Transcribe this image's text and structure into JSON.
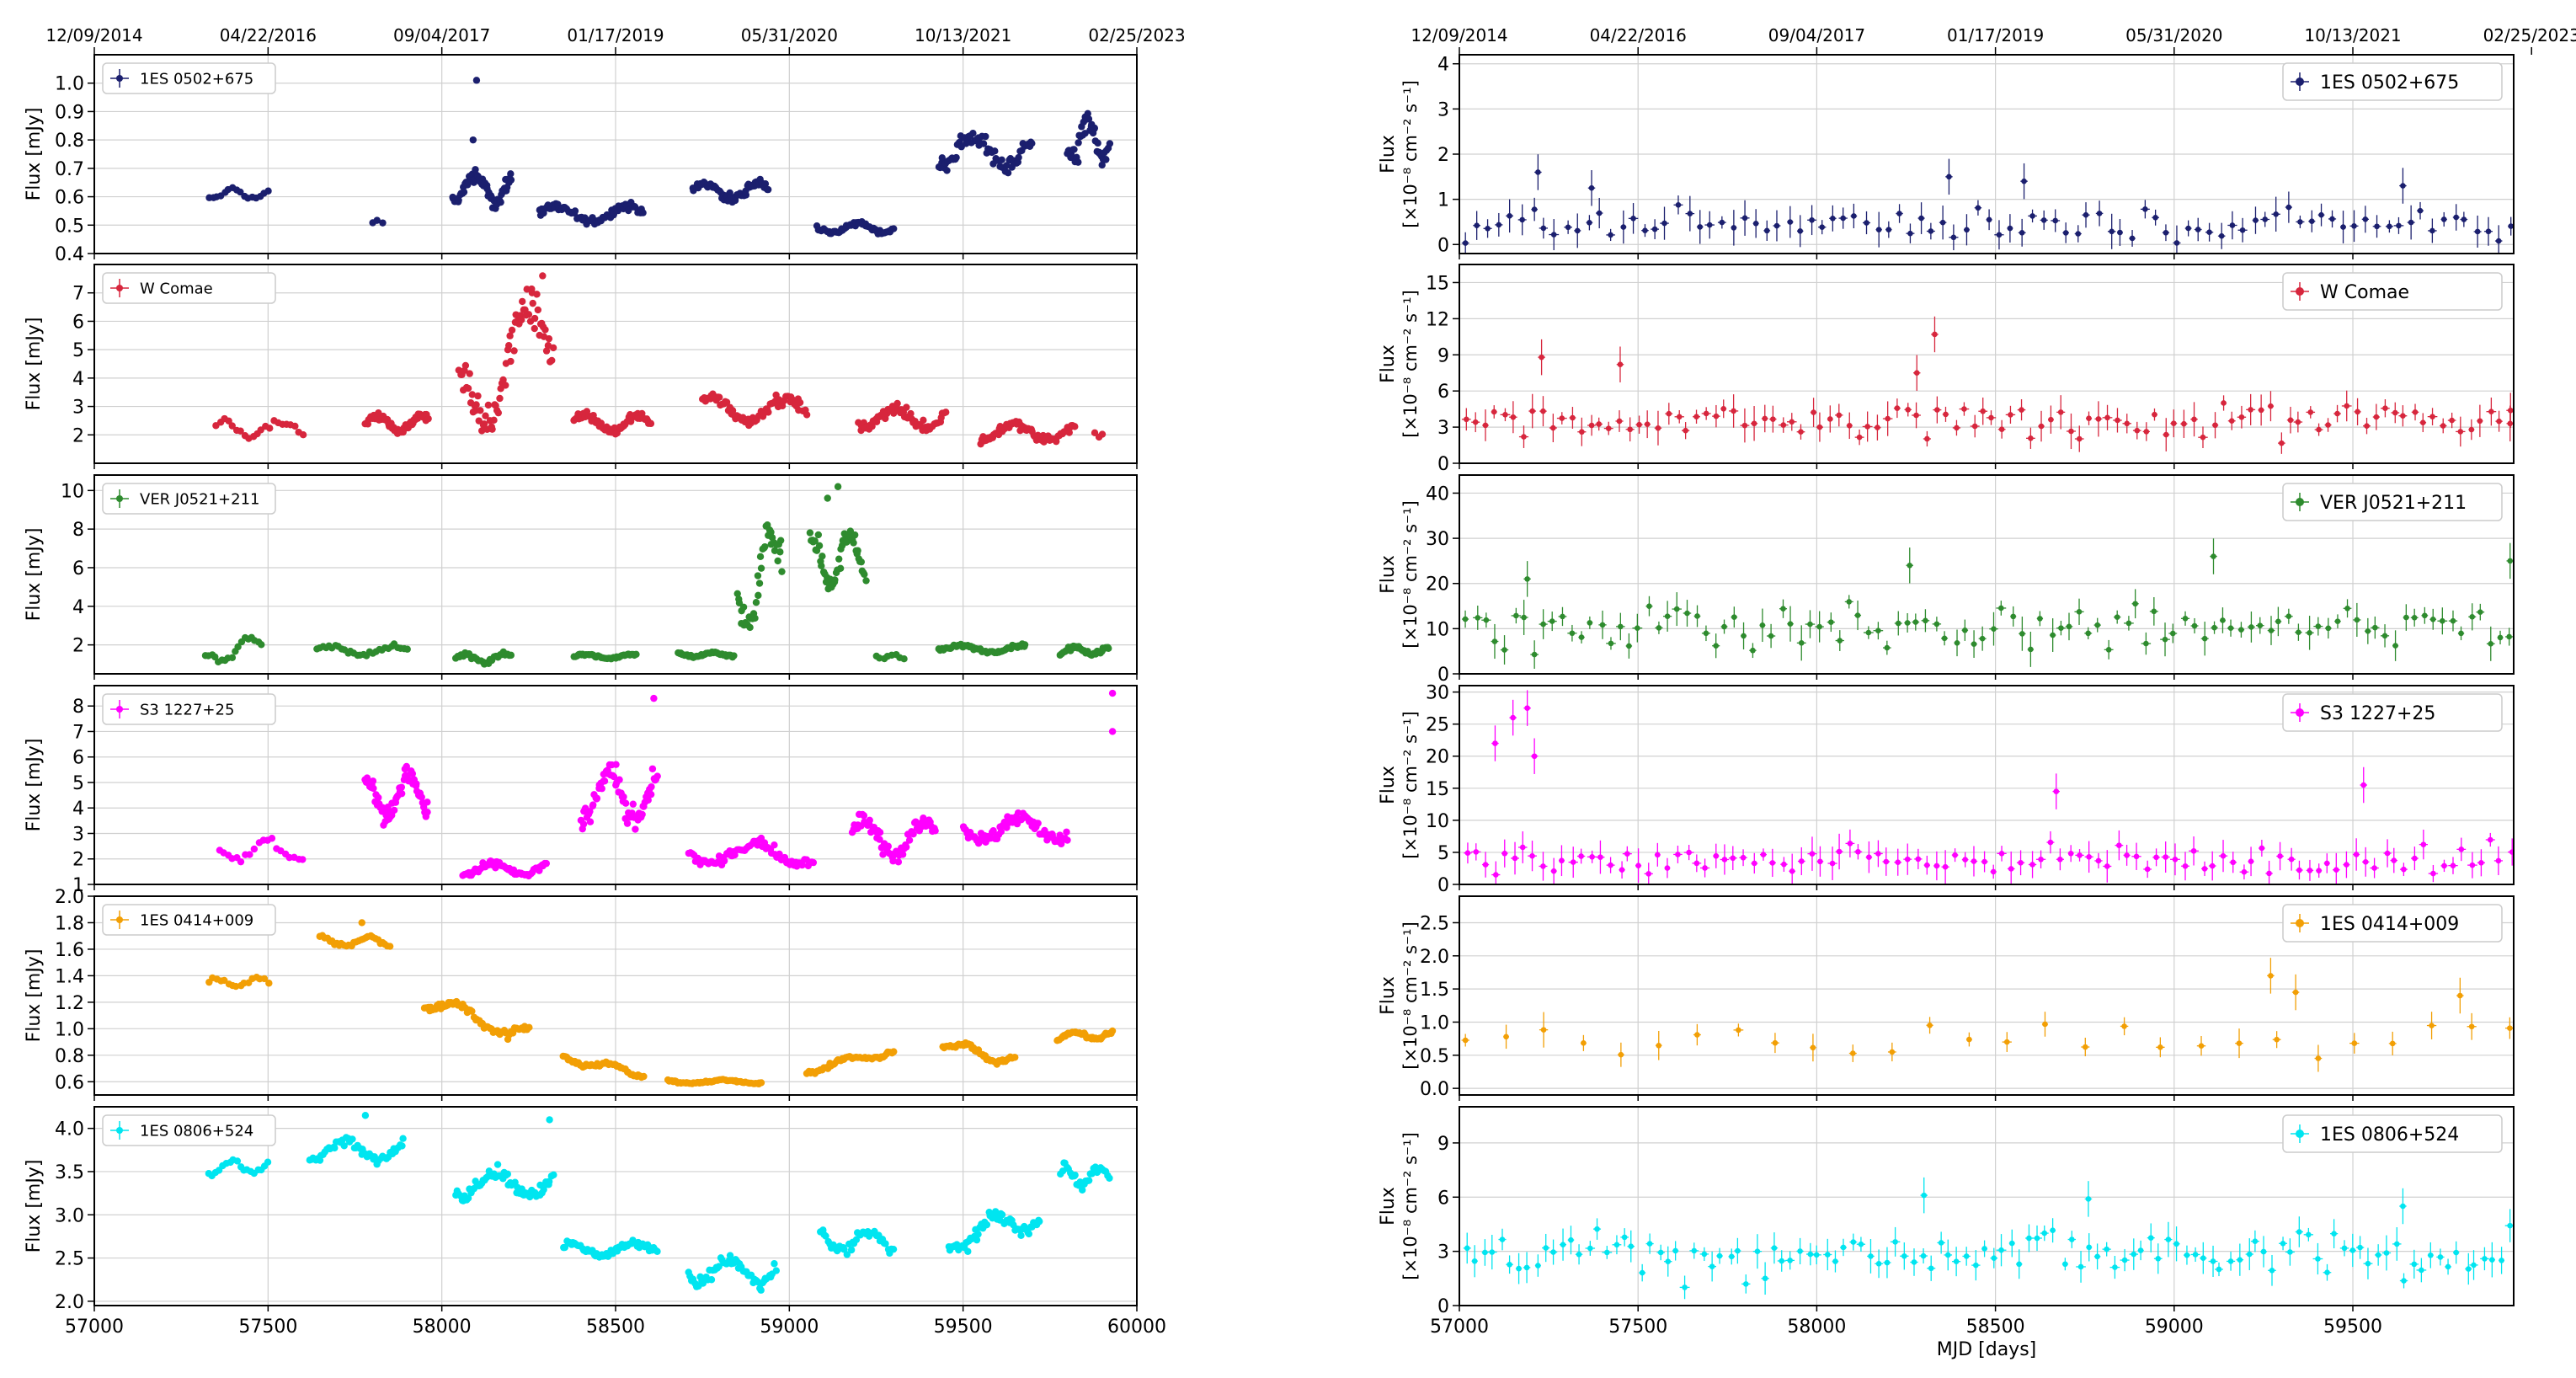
{
  "figure": {
    "top_dates": [
      "12/09/2014",
      "04/22/2016",
      "09/04/2017",
      "01/17/2019",
      "05/31/2020",
      "10/13/2021",
      "02/25/2023"
    ],
    "top_date_mjd": [
      57000,
      57500,
      58000,
      58500,
      59000,
      59500,
      60000
    ],
    "x_ticks": [
      57000,
      57500,
      58000,
      58500,
      59000,
      59500,
      60000
    ],
    "x_tick_labels": [
      "57000",
      "57500",
      "58000",
      "58500",
      "59000",
      "59500",
      "60000"
    ],
    "left_xlim": [
      57000,
      60000
    ],
    "right_xlim": [
      57000,
      59950
    ],
    "right_xlabel": "MJD [days]",
    "left_ylabel": "Flux [mJy]",
    "right_ylabel_line1": "Flux",
    "right_ylabel_line2": "[×10⁻⁸ cm⁻² s⁻¹]",
    "grid": true
  },
  "chart_data": [
    {
      "type": "scatter",
      "panel": "left-1",
      "source": "1ES 0502+675",
      "color": "#1b1f6e",
      "ylabel": "Flux [mJy]",
      "ylim": [
        0.4,
        1.1
      ],
      "yticks": [
        0.4,
        0.5,
        0.6,
        0.7,
        0.8,
        0.9,
        1.0
      ],
      "ytick_labels": [
        "0.4",
        "0.5",
        "0.6",
        "0.7",
        "0.8",
        "0.9",
        "1.0"
      ],
      "legend": "top-left",
      "segments": [
        {
          "x0": 57330,
          "x1": 57500,
          "base": 0.61,
          "amp": 0.03,
          "n": 16
        },
        {
          "x0": 57800,
          "x1": 57830,
          "base": 0.51,
          "amp": 0.01,
          "n": 3
        },
        {
          "x0": 58030,
          "x1": 58200,
          "base": 0.63,
          "amp": 0.08,
          "n": 60
        },
        {
          "x0": 58280,
          "x1": 58580,
          "base": 0.54,
          "amp": 0.05,
          "n": 70
        },
        {
          "x0": 58720,
          "x1": 58940,
          "base": 0.62,
          "amp": 0.05,
          "n": 60
        },
        {
          "x0": 59080,
          "x1": 59300,
          "base": 0.49,
          "amp": 0.03,
          "n": 55
        },
        {
          "x0": 59430,
          "x1": 59700,
          "base": 0.76,
          "amp": 0.1,
          "n": 70
        },
        {
          "x0": 59800,
          "x1": 59920,
          "base": 0.8,
          "amp": 0.12,
          "n": 45
        }
      ],
      "flares": [
        {
          "x": 58100,
          "y": 1.01
        },
        {
          "x": 58090,
          "y": 0.8
        }
      ]
    },
    {
      "type": "scatter",
      "panel": "left-2",
      "source": "W Comae",
      "color": "#d7263d",
      "ylabel": "Flux [mJy]",
      "ylim": [
        1,
        8
      ],
      "yticks": [
        2,
        3,
        4,
        5,
        6,
        7
      ],
      "ytick_labels": [
        "2",
        "3",
        "4",
        "5",
        "6",
        "7"
      ],
      "legend": "top-left",
      "segments": [
        {
          "x0": 57350,
          "x1": 57600,
          "base": 2.2,
          "amp": 0.5,
          "n": 22
        },
        {
          "x0": 57780,
          "x1": 57960,
          "base": 2.4,
          "amp": 0.5,
          "n": 55
        },
        {
          "x0": 58050,
          "x1": 58320,
          "base": 4.5,
          "amp": 2.5,
          "n": 75,
          "trend": 4.0
        },
        {
          "x0": 58380,
          "x1": 58600,
          "base": 2.4,
          "amp": 0.5,
          "n": 60
        },
        {
          "x0": 58750,
          "x1": 59050,
          "base": 2.9,
          "amp": 0.7,
          "n": 70
        },
        {
          "x0": 59200,
          "x1": 59450,
          "base": 2.6,
          "amp": 0.6,
          "n": 60
        },
        {
          "x0": 59550,
          "x1": 59820,
          "base": 2.1,
          "amp": 0.5,
          "n": 70
        },
        {
          "x0": 59880,
          "x1": 59900,
          "base": 2.0,
          "amp": 0.2,
          "n": 3
        }
      ],
      "flares": [
        {
          "x": 58290,
          "y": 7.6
        },
        {
          "x": 58260,
          "y": 7.0
        }
      ]
    },
    {
      "type": "scatter",
      "panel": "left-3",
      "source": "VER J0521+211",
      "color": "#2e8b2e",
      "ylabel": "Flux [mJy]",
      "ylim": [
        0.5,
        10.8
      ],
      "yticks": [
        2,
        4,
        6,
        8,
        10
      ],
      "ytick_labels": [
        "2",
        "4",
        "6",
        "8",
        "10"
      ],
      "legend": "top-left",
      "segments": [
        {
          "x0": 57320,
          "x1": 57480,
          "base": 1.7,
          "amp": 0.6,
          "n": 18,
          "trend": 1.2
        },
        {
          "x0": 57640,
          "x1": 57900,
          "base": 1.7,
          "amp": 0.4,
          "n": 30
        },
        {
          "x0": 58040,
          "x1": 58200,
          "base": 1.3,
          "amp": 0.4,
          "n": 30
        },
        {
          "x0": 58380,
          "x1": 58560,
          "base": 1.4,
          "amp": 0.2,
          "n": 40
        },
        {
          "x0": 58680,
          "x1": 58840,
          "base": 1.5,
          "amp": 0.2,
          "n": 40
        },
        {
          "x0": 58850,
          "x1": 58980,
          "base": 5.5,
          "amp": 2.5,
          "n": 40,
          "trend": 5.0
        },
        {
          "x0": 59060,
          "x1": 59220,
          "base": 6.5,
          "amp": 2.2,
          "n": 50
        },
        {
          "x0": 59250,
          "x1": 59330,
          "base": 1.4,
          "amp": 0.2,
          "n": 8
        },
        {
          "x0": 59430,
          "x1": 59680,
          "base": 1.8,
          "amp": 0.3,
          "n": 55
        },
        {
          "x0": 59780,
          "x1": 59920,
          "base": 1.7,
          "amp": 0.3,
          "n": 35
        }
      ],
      "flares": [
        {
          "x": 59140,
          "y": 10.2
        },
        {
          "x": 59110,
          "y": 9.6
        }
      ]
    },
    {
      "type": "scatter",
      "panel": "left-4",
      "source": "S3 1227+25",
      "color": "#ff00ff",
      "ylabel": "Flux [mJy]",
      "ylim": [
        1,
        8.8
      ],
      "yticks": [
        1,
        2,
        3,
        4,
        5,
        6,
        7,
        8
      ],
      "ytick_labels": [
        "1",
        "2",
        "3",
        "4",
        "5",
        "6",
        "7",
        "8"
      ],
      "legend": "top-left",
      "segments": [
        {
          "x0": 57360,
          "x1": 57600,
          "base": 2.3,
          "amp": 0.6,
          "n": 20
        },
        {
          "x0": 57780,
          "x1": 57960,
          "base": 4.5,
          "amp": 1.4,
          "n": 60
        },
        {
          "x0": 58060,
          "x1": 58300,
          "base": 1.6,
          "amp": 0.4,
          "n": 60
        },
        {
          "x0": 58400,
          "x1": 58620,
          "base": 4.5,
          "amp": 1.8,
          "n": 70
        },
        {
          "x0": 58710,
          "x1": 59070,
          "base": 2.2,
          "amp": 0.7,
          "n": 70
        },
        {
          "x0": 59180,
          "x1": 59420,
          "base": 2.8,
          "amp": 1.2,
          "n": 65
        },
        {
          "x0": 59500,
          "x1": 59800,
          "base": 3.2,
          "amp": 0.8,
          "n": 80
        }
      ],
      "flares": [
        {
          "x": 58610,
          "y": 8.3
        },
        {
          "x": 59930,
          "y": 8.5
        },
        {
          "x": 59930,
          "y": 7.0
        }
      ]
    },
    {
      "type": "scatter",
      "panel": "left-5",
      "source": "1ES 0414+009",
      "color": "#f29f05",
      "ylabel": "Flux [mJy]",
      "ylim": [
        0.5,
        2.0
      ],
      "yticks": [
        0.6,
        0.8,
        1.0,
        1.2,
        1.4,
        1.6,
        1.8,
        2.0
      ],
      "ytick_labels": [
        "0.6",
        "0.8",
        "1.0",
        "1.2",
        "1.4",
        "1.6",
        "1.8",
        "2.0"
      ],
      "legend": "top-left",
      "segments": [
        {
          "x0": 57330,
          "x1": 57500,
          "base": 1.35,
          "amp": 0.05,
          "n": 16
        },
        {
          "x0": 57650,
          "x1": 57850,
          "base": 1.66,
          "amp": 0.06,
          "n": 30
        },
        {
          "x0": 57950,
          "x1": 58250,
          "base": 1.08,
          "amp": 0.1,
          "n": 60,
          "trend": -0.25
        },
        {
          "x0": 58350,
          "x1": 58580,
          "base": 0.72,
          "amp": 0.05,
          "n": 50,
          "trend": -0.12
        },
        {
          "x0": 58650,
          "x1": 58920,
          "base": 0.6,
          "amp": 0.02,
          "n": 55
        },
        {
          "x0": 59050,
          "x1": 59300,
          "base": 0.76,
          "amp": 0.05,
          "n": 50,
          "trend": 0.15
        },
        {
          "x0": 59440,
          "x1": 59650,
          "base": 0.82,
          "amp": 0.06,
          "n": 45,
          "trend": -0.15
        },
        {
          "x0": 59770,
          "x1": 59930,
          "base": 0.95,
          "amp": 0.05,
          "n": 40
        }
      ],
      "flares": [
        {
          "x": 57770,
          "y": 1.8
        },
        {
          "x": 58190,
          "y": 0.92
        }
      ]
    },
    {
      "type": "scatter",
      "panel": "left-6",
      "source": "1ES 0806+524",
      "color": "#00e5f0",
      "ylabel": "Flux [mJy]",
      "ylim": [
        1.95,
        4.25
      ],
      "yticks": [
        2.0,
        2.5,
        3.0,
        3.5,
        4.0
      ],
      "ytick_labels": [
        "2.0",
        "2.5",
        "3.0",
        "3.5",
        "4.0"
      ],
      "legend": "top-left",
      "segments": [
        {
          "x0": 57330,
          "x1": 57500,
          "base": 3.55,
          "amp": 0.15,
          "n": 18
        },
        {
          "x0": 57620,
          "x1": 57890,
          "base": 3.75,
          "amp": 0.2,
          "n": 50
        },
        {
          "x0": 58040,
          "x1": 58320,
          "base": 3.35,
          "amp": 0.25,
          "n": 65
        },
        {
          "x0": 58350,
          "x1": 58620,
          "base": 2.6,
          "amp": 0.12,
          "n": 60
        },
        {
          "x0": 58710,
          "x1": 58960,
          "base": 2.35,
          "amp": 0.25,
          "n": 55
        },
        {
          "x0": 59090,
          "x1": 59300,
          "base": 2.7,
          "amp": 0.2,
          "n": 40
        },
        {
          "x0": 59460,
          "x1": 59720,
          "base": 2.85,
          "amp": 0.25,
          "n": 60,
          "trend": 0.3
        },
        {
          "x0": 59780,
          "x1": 59920,
          "base": 3.45,
          "amp": 0.2,
          "n": 30
        }
      ],
      "flares": [
        {
          "x": 57780,
          "y": 4.15
        },
        {
          "x": 58310,
          "y": 4.1
        }
      ]
    },
    {
      "type": "scatter",
      "panel": "right-1",
      "source": "1ES 0502+675",
      "color": "#1b1f6e",
      "ylabel": "Flux [×10⁻⁸ cm⁻² s⁻¹]",
      "ylim": [
        -0.2,
        4.2
      ],
      "yticks": [
        0,
        1,
        2,
        3,
        4
      ],
      "ytick_labels": [
        "0",
        "1",
        "2",
        "3",
        "4"
      ],
      "legend": "top-right",
      "base": 0.45,
      "amp": 0.35,
      "n": 95,
      "flares": [
        {
          "x": 57220,
          "y": 1.6
        },
        {
          "x": 57370,
          "y": 1.25
        },
        {
          "x": 58370,
          "y": 1.5
        },
        {
          "x": 58580,
          "y": 1.4
        },
        {
          "x": 59640,
          "y": 1.3
        }
      ]
    },
    {
      "type": "scatter",
      "panel": "right-2",
      "source": "W Comae",
      "color": "#d7263d",
      "ylabel": "Flux [×10⁻⁸ cm⁻² s⁻¹]",
      "ylim": [
        0,
        16.5
      ],
      "yticks": [
        0,
        3,
        6,
        9,
        12,
        15
      ],
      "ytick_labels": [
        "0",
        "3",
        "6",
        "9",
        "12",
        "15"
      ],
      "legend": "top-right",
      "base": 3.5,
      "amp": 1.6,
      "n": 110,
      "flares": [
        {
          "x": 57230,
          "y": 8.8
        },
        {
          "x": 57450,
          "y": 8.2
        },
        {
          "x": 58330,
          "y": 10.7
        },
        {
          "x": 58280,
          "y": 7.5
        },
        {
          "x": 59940,
          "y": 3.3
        }
      ]
    },
    {
      "type": "scatter",
      "panel": "right-3",
      "source": "VER J0521+211",
      "color": "#2e8b2e",
      "ylabel": "Flux [×10⁻⁸ cm⁻² s⁻¹]",
      "ylim": [
        0,
        44
      ],
      "yticks": [
        0,
        10,
        20,
        30,
        40
      ],
      "ytick_labels": [
        "0",
        "10",
        "20",
        "30",
        "40"
      ],
      "legend": "top-right",
      "base": 10,
      "amp": 6,
      "n": 110,
      "flares": [
        {
          "x": 57190,
          "y": 21
        },
        {
          "x": 58260,
          "y": 24
        },
        {
          "x": 59110,
          "y": 26
        },
        {
          "x": 59940,
          "y": 25
        }
      ]
    },
    {
      "type": "scatter",
      "panel": "right-4",
      "source": "S3 1227+25",
      "color": "#ff00ff",
      "ylabel": "Flux [×10⁻⁸ cm⁻² s⁻¹]",
      "ylim": [
        0,
        31
      ],
      "yticks": [
        0,
        5,
        10,
        15,
        20,
        25,
        30
      ],
      "ytick_labels": [
        "0",
        "5",
        "10",
        "15",
        "20",
        "25",
        "30"
      ],
      "legend": "top-right",
      "base": 4,
      "amp": 2.5,
      "n": 110,
      "flares": [
        {
          "x": 57100,
          "y": 22
        },
        {
          "x": 57150,
          "y": 26
        },
        {
          "x": 57190,
          "y": 27.5
        },
        {
          "x": 57210,
          "y": 20
        },
        {
          "x": 58670,
          "y": 14.5
        },
        {
          "x": 59530,
          "y": 15.5
        }
      ]
    },
    {
      "type": "scatter",
      "panel": "right-5",
      "source": "1ES 0414+009",
      "color": "#f29f05",
      "ylabel": "Flux [×10⁻⁸ cm⁻² s⁻¹]",
      "ylim": [
        -0.1,
        2.9
      ],
      "yticks": [
        0,
        0.5,
        1,
        1.5,
        2,
        2.5
      ],
      "ytick_labels": [
        "0.0",
        "0.5",
        "1.0",
        "1.5",
        "2.0",
        "2.5"
      ],
      "legend": "top-right",
      "base": 0.75,
      "amp": 0.3,
      "n": 28,
      "flares": [
        {
          "x": 59270,
          "y": 1.7
        },
        {
          "x": 59340,
          "y": 1.45
        },
        {
          "x": 59800,
          "y": 1.4
        }
      ]
    },
    {
      "type": "scatter",
      "panel": "right-6",
      "source": "1ES 0806+524",
      "color": "#00e5f0",
      "ylabel": "Flux [×10⁻⁸ cm⁻² s⁻¹]",
      "ylim": [
        0,
        11
      ],
      "yticks": [
        0,
        3,
        6,
        9
      ],
      "ytick_labels": [
        "0",
        "3",
        "6",
        "9"
      ],
      "legend": "top-right",
      "base": 2.8,
      "amp": 1.4,
      "n": 120,
      "flares": [
        {
          "x": 58300,
          "y": 6.1
        },
        {
          "x": 58760,
          "y": 5.9
        },
        {
          "x": 59640,
          "y": 5.5
        }
      ]
    }
  ]
}
